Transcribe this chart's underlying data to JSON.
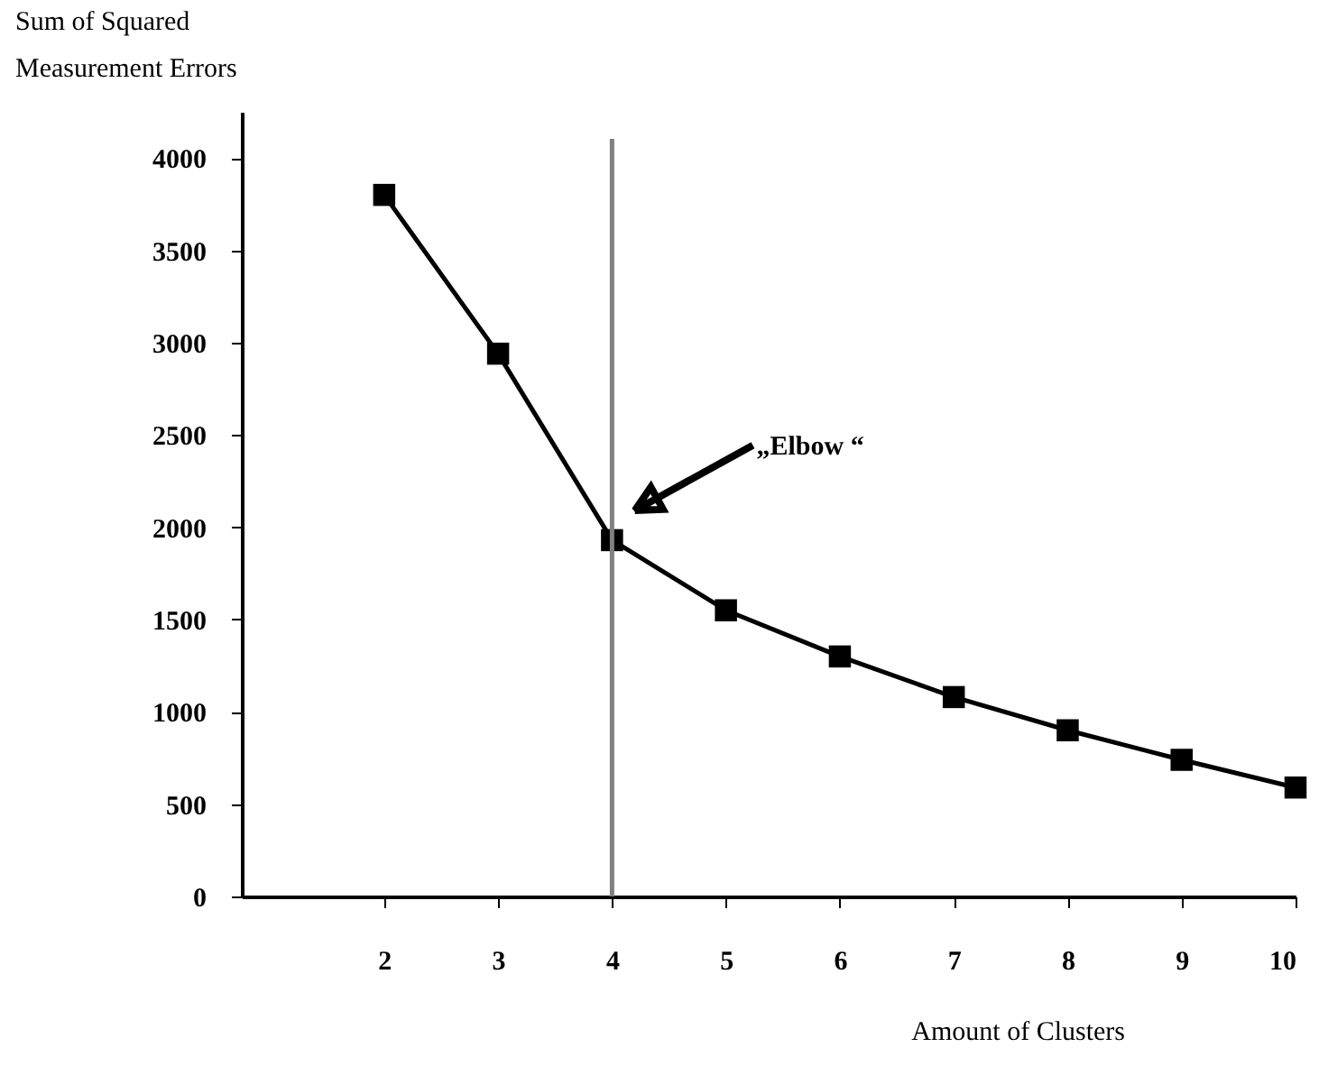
{
  "chart_data": {
    "type": "line",
    "ylabel": "Sum of Squared\nMeasurement Errors",
    "xlabel": "Amount of Clusters",
    "x": [
      2,
      3,
      4,
      5,
      6,
      7,
      8,
      9,
      10
    ],
    "series": [
      {
        "color": "#000000",
        "values": [
          3800,
          2940,
          1930,
          1550,
          1300,
          1080,
          900,
          740,
          590
        ]
      }
    ],
    "xlim": [
      0.75,
      10
    ],
    "xticks": [
      2,
      3,
      4,
      5,
      6,
      7,
      8,
      9,
      10
    ],
    "ylim": [
      0,
      4250
    ],
    "yticks": [
      0,
      500,
      1000,
      1500,
      2000,
      2500,
      3000,
      3500,
      4000
    ],
    "ref_lines": [
      {
        "axis": "x",
        "value": 4,
        "color": "#808080"
      }
    ],
    "annotations": [
      "„Elbow   “"
    ],
    "marker": "square",
    "line_style": "solid",
    "grid": false
  }
}
